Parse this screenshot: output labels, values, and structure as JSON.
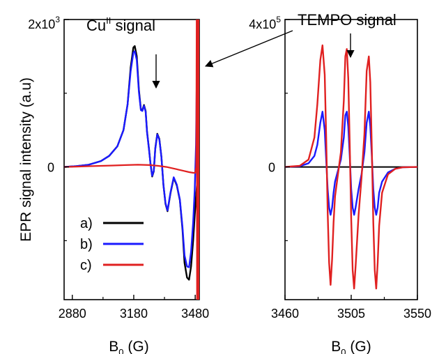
{
  "chart_data": [
    {
      "type": "line",
      "panel": "left",
      "title": "",
      "annotation": "Cu<sup>II</sup> signal",
      "annotation_base": "Cu",
      "annotation_sup": "II",
      "xlabel": "B",
      "xlabel_sub": "0",
      "xlabel_unit": "(G)",
      "ylabel": "EPR signal intensity (a.u)",
      "xlim": [
        2840,
        3500
      ],
      "ylim": [
        -1800,
        2000
      ],
      "xticks": [
        2880,
        3180,
        3480
      ],
      "x_tick_labels": [
        "2880",
        "3180",
        "3480"
      ],
      "yticks": [
        2000,
        0
      ],
      "y_tick_labels": [
        "2x10",
        "0"
      ],
      "y_top_exponent": "3",
      "grid": false,
      "legend": {
        "placement": "bottom-left",
        "entries": [
          {
            "label": "a)",
            "color": "#000000"
          },
          {
            "label": "b)",
            "color": "#1a1aff"
          },
          {
            "label": "c)",
            "color": "#e02020"
          }
        ]
      },
      "series": [
        {
          "name": "a)",
          "color": "#000000",
          "x": [
            2840,
            2900,
            2960,
            3020,
            3060,
            3100,
            3130,
            3150,
            3165,
            3178,
            3185,
            3195,
            3205,
            3215,
            3222,
            3230,
            3238,
            3245,
            3255,
            3262,
            3270,
            3278,
            3285,
            3295,
            3305,
            3315,
            3325,
            3335,
            3345,
            3360,
            3375,
            3390,
            3405,
            3418,
            3428,
            3440,
            3450,
            3460,
            3470,
            3478,
            3484,
            3490
          ],
          "y": [
            0,
            10,
            30,
            80,
            150,
            280,
            500,
            850,
            1350,
            1620,
            1640,
            1500,
            1050,
            780,
            770,
            840,
            760,
            480,
            230,
            40,
            -130,
            -60,
            250,
            450,
            380,
            140,
            -250,
            -500,
            -600,
            -350,
            -150,
            -250,
            -450,
            -850,
            -1300,
            -1500,
            -1530,
            -1350,
            -1000,
            -650,
            -400,
            -200
          ]
        },
        {
          "name": "b)",
          "color": "#1a1aff",
          "x": [
            2840,
            2900,
            2960,
            3020,
            3060,
            3100,
            3130,
            3150,
            3165,
            3178,
            3185,
            3195,
            3205,
            3215,
            3222,
            3230,
            3238,
            3245,
            3255,
            3262,
            3270,
            3278,
            3285,
            3295,
            3305,
            3315,
            3325,
            3335,
            3345,
            3360,
            3375,
            3390,
            3405,
            3418,
            3428,
            3440,
            3450,
            3460,
            3470,
            3478,
            3484,
            3490
          ],
          "y": [
            0,
            10,
            30,
            80,
            150,
            280,
            500,
            850,
            1300,
            1550,
            1570,
            1450,
            1020,
            770,
            760,
            830,
            750,
            470,
            220,
            40,
            -120,
            -50,
            240,
            440,
            370,
            140,
            -250,
            -490,
            -590,
            -340,
            -140,
            -240,
            -440,
            -820,
            -1200,
            -1350,
            -1360,
            -1150,
            -750,
            -300,
            300,
            1800
          ]
        },
        {
          "name": "c)",
          "color": "#e02020",
          "x": [
            2840,
            2900,
            2960,
            3020,
            3080,
            3140,
            3200,
            3260,
            3300,
            3340,
            3380,
            3420,
            3450,
            3470,
            3480,
            3485,
            3487,
            3489
          ],
          "y": [
            0,
            5,
            10,
            15,
            20,
            25,
            30,
            25,
            15,
            0,
            -25,
            -50,
            -70,
            -80,
            -80,
            0,
            2000,
            -1800
          ]
        }
      ]
    },
    {
      "type": "line",
      "panel": "right",
      "title": "",
      "annotation": "TEMPO signal",
      "xlabel": "B",
      "xlabel_sub": "0",
      "xlabel_unit": "(G)",
      "xlim": [
        3460,
        3550
      ],
      "ylim": [
        -360000,
        400000
      ],
      "xticks": [
        3460,
        3505,
        3550
      ],
      "x_tick_labels": [
        "3460",
        "3505",
        "3550"
      ],
      "yticks": [
        400000,
        0
      ],
      "y_tick_labels": [
        "4x10",
        "0"
      ],
      "y_top_exponent": "5",
      "grid": false,
      "baseline_color": "#000000",
      "series": [
        {
          "name": "b)",
          "color": "#1a1aff",
          "x": [
            3460,
            3470,
            3476,
            3480,
            3482,
            3484,
            3485.5,
            3487,
            3488,
            3489,
            3490,
            3491,
            3492,
            3493,
            3494,
            3496,
            3498,
            3500,
            3501,
            3502,
            3503,
            3504,
            3505,
            3506,
            3507,
            3508,
            3510,
            3512,
            3514,
            3515.5,
            3517,
            3518,
            3519,
            3520,
            3521,
            3522,
            3523,
            3524,
            3526,
            3530,
            3535,
            3540,
            3550
          ],
          "y": [
            0,
            2000,
            10000,
            30000,
            60000,
            120000,
            150000,
            100000,
            20000,
            -60000,
            -110000,
            -130000,
            -110000,
            -70000,
            -40000,
            -10000,
            20000,
            80000,
            140000,
            150000,
            110000,
            30000,
            -60000,
            -110000,
            -130000,
            -110000,
            -60000,
            -20000,
            40000,
            120000,
            150000,
            110000,
            30000,
            -60000,
            -110000,
            -130000,
            -110000,
            -70000,
            -40000,
            -15000,
            -5000,
            -1000,
            0
          ]
        },
        {
          "name": "c)",
          "color": "#e02020",
          "x": [
            3460,
            3470,
            3476,
            3480,
            3482,
            3484,
            3485.5,
            3487,
            3488,
            3489,
            3490,
            3491,
            3492,
            3493,
            3494,
            3496,
            3498,
            3500,
            3501,
            3502,
            3503,
            3504,
            3505,
            3506,
            3507,
            3508,
            3510,
            3512,
            3514,
            3515.5,
            3517,
            3518,
            3519,
            3520,
            3521,
            3522,
            3523,
            3524,
            3526,
            3530,
            3535,
            3540,
            3550
          ],
          "y": [
            0,
            3000,
            20000,
            80000,
            170000,
            290000,
            330000,
            250000,
            80000,
            -120000,
            -260000,
            -320000,
            -250000,
            -150000,
            -80000,
            -20000,
            40000,
            180000,
            300000,
            320000,
            240000,
            60000,
            -140000,
            -280000,
            -330000,
            -270000,
            -130000,
            -30000,
            90000,
            260000,
            300000,
            230000,
            50000,
            -150000,
            -280000,
            -330000,
            -260000,
            -160000,
            -70000,
            -20000,
            -5000,
            -1000,
            0
          ]
        }
      ]
    }
  ]
}
